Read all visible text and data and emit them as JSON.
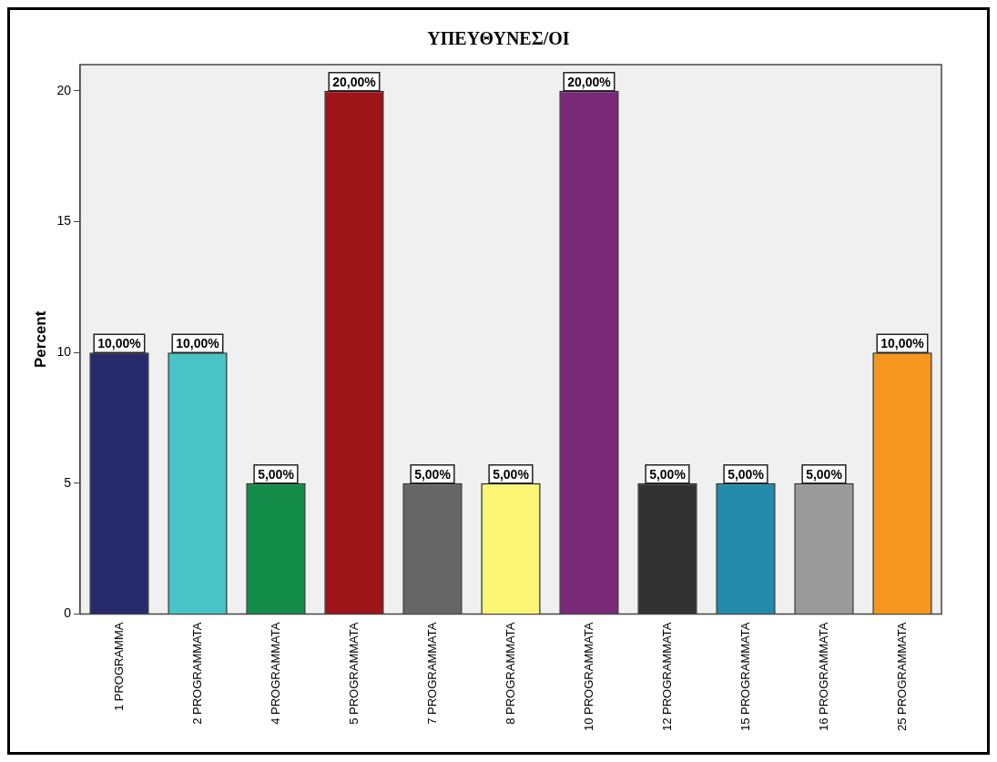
{
  "chart_data": {
    "type": "bar",
    "title": "ΥΠΕΥΘΥΝΕΣ/ΟΙ",
    "ylabel": "Percent",
    "categories": [
      "1 PROGRAMMA",
      "2 PROGRAMMATA",
      "4 PROGRAMMATA",
      "5 PROGRAMMATA",
      "7 PROGRAMMATA",
      "8 PROGRAMMATA",
      "10 PROGRAMMATA",
      "12 PROGRAMMATA",
      "15 PROGRAMMATA",
      "16 PROGRAMMATA",
      "25 PROGRAMMATA"
    ],
    "values": [
      10,
      10,
      5,
      20,
      5,
      5,
      20,
      5,
      5,
      5,
      10
    ],
    "colors": [
      "#282a6e",
      "#48c3c6",
      "#128c48",
      "#9e1519",
      "#666666",
      "#fbf774",
      "#7a2878",
      "#323232",
      "#238aab",
      "#9a9a9a",
      "#f7961e"
    ],
    "value_labels": [
      "10,00%",
      "10,00%",
      "5,00%",
      "20,00%",
      "5,00%",
      "5,00%",
      "20,00%",
      "5,00%",
      "5,00%",
      "5,00%",
      "10,00%"
    ],
    "ylim": [
      0,
      21
    ],
    "yticks": [
      0,
      5,
      10,
      15,
      20
    ],
    "grid": false,
    "legend": false
  }
}
